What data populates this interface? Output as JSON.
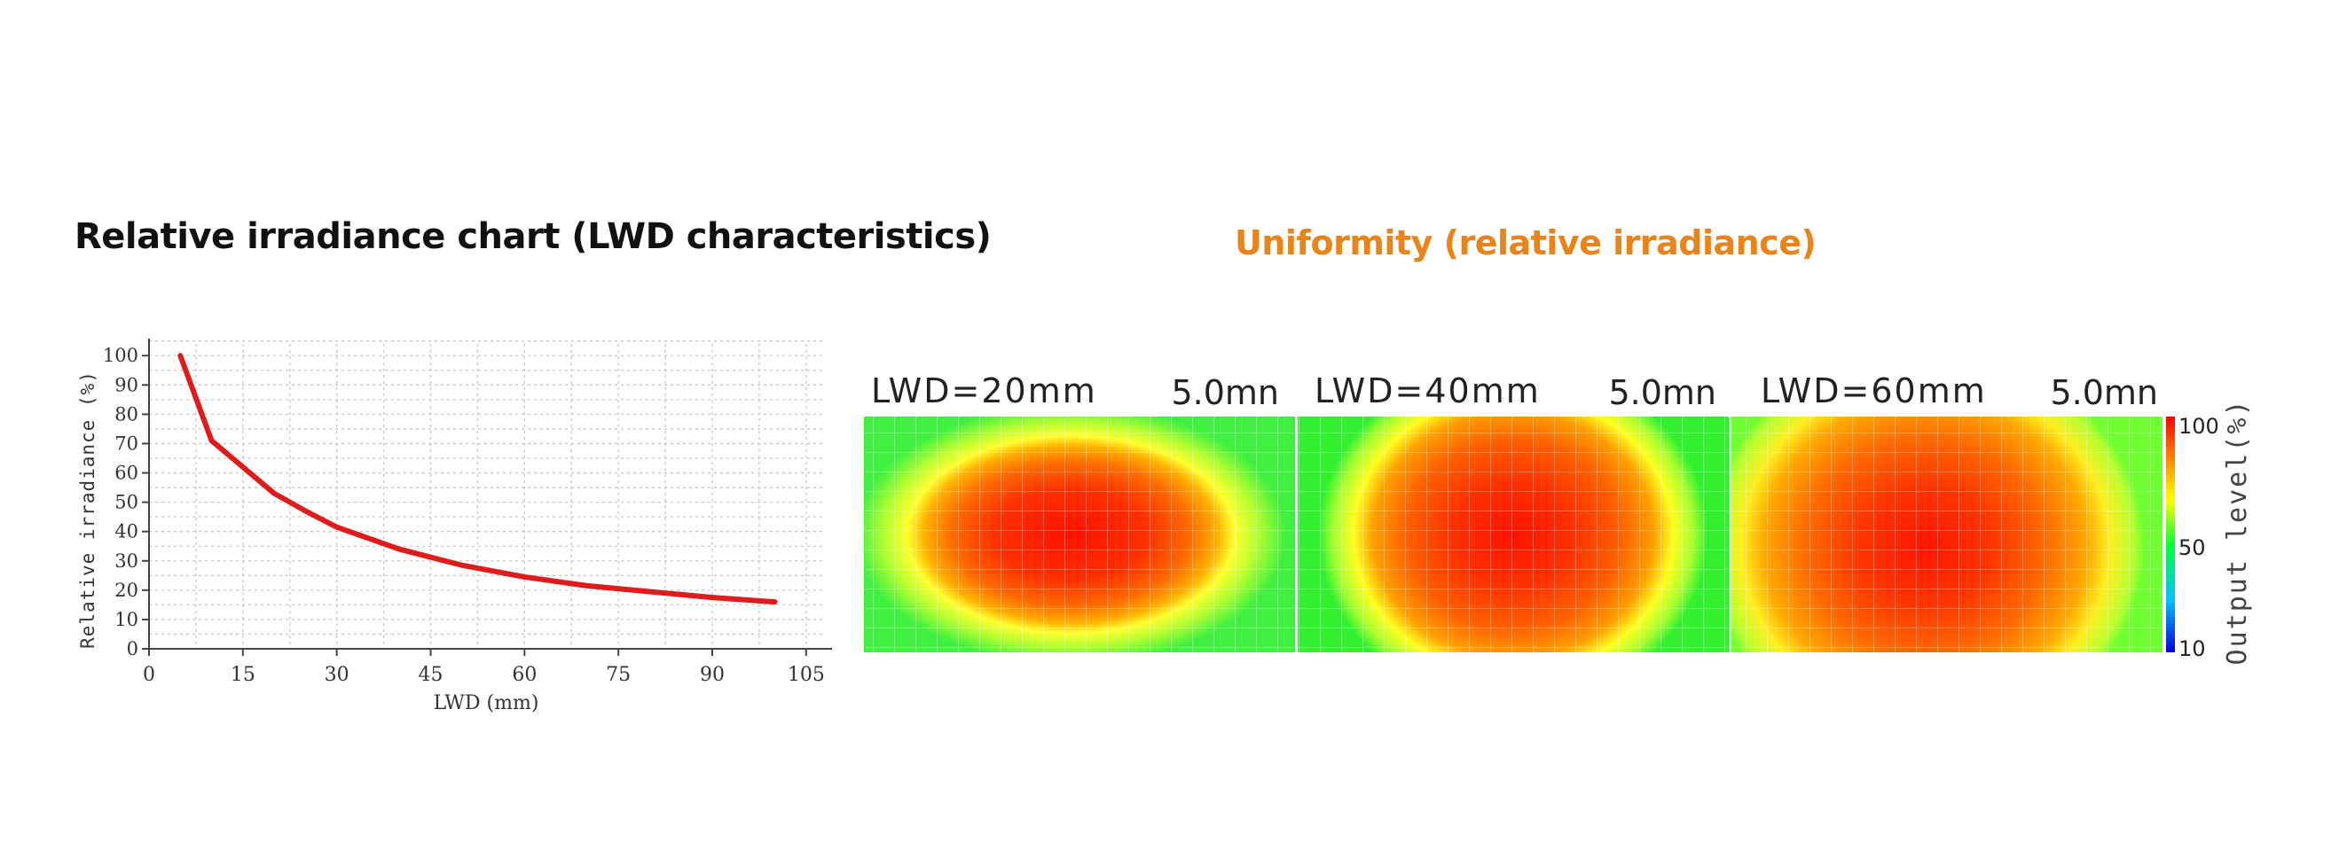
{
  "page": {
    "left_title": "Relative irradiance chart (LWD characteristics)",
    "right_title": "Uniformity (relative irradiance)",
    "right_title_color": "#E8841A"
  },
  "chart_data": [
    {
      "type": "line",
      "title": "",
      "xlabel": "LWD (mm)",
      "ylabel": "Relative irradiance (%)",
      "xlim": [
        0,
        108
      ],
      "ylim": [
        0,
        104
      ],
      "xticks": [
        0,
        15,
        30,
        45,
        60,
        75,
        90,
        105
      ],
      "yticks": [
        0,
        10,
        20,
        30,
        40,
        50,
        60,
        70,
        80,
        90,
        100
      ],
      "grid": true,
      "series": [
        {
          "name": "Relative irradiance",
          "color": "#E01B1B",
          "x": [
            5,
            10,
            15,
            20,
            25,
            30,
            40,
            50,
            60,
            70,
            80,
            90,
            100
          ],
          "y": [
            100,
            71,
            62,
            53,
            47,
            41.5,
            34,
            28.5,
            24.5,
            21.5,
            19.5,
            17.5,
            16
          ]
        }
      ]
    },
    {
      "type": "heatmap",
      "panels": [
        {
          "label": "LWD=20mm",
          "scale": "5.0mn"
        },
        {
          "label": "LWD=40mm",
          "scale": "5.0mn"
        },
        {
          "label": "LWD=60mm",
          "scale": "5.0mn"
        }
      ],
      "colorbar": {
        "label": "Output level(%)",
        "ticks": [
          100,
          50,
          10
        ]
      }
    }
  ]
}
